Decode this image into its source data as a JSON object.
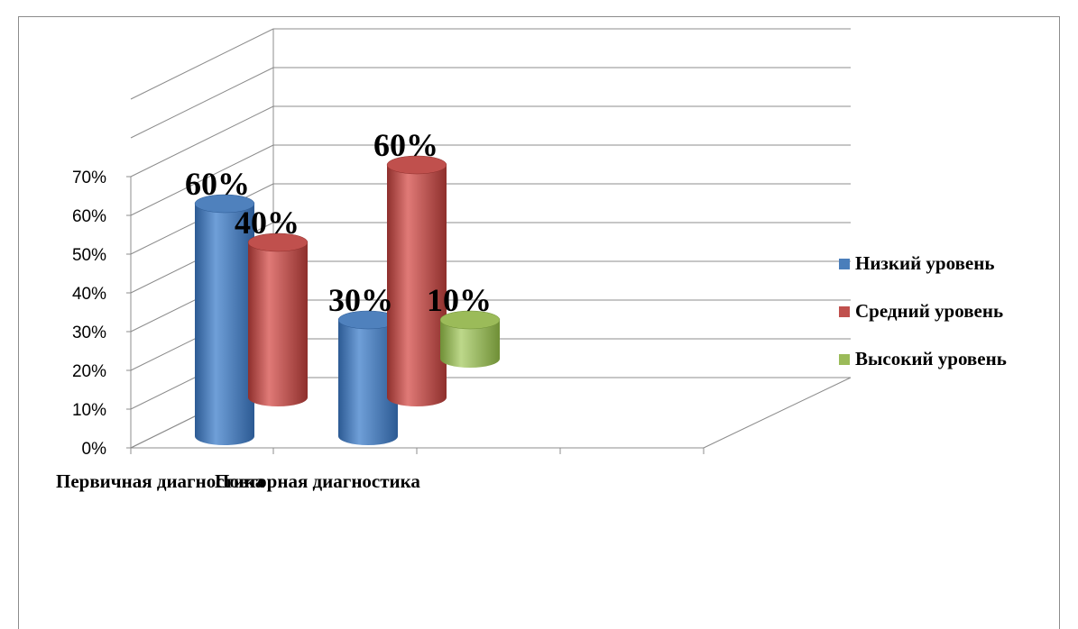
{
  "chart_data": {
    "type": "bar",
    "variant": "3d-cylinder",
    "categories": [
      "Первичная диагностика",
      "Повторная диагностика"
    ],
    "series": [
      {
        "name": "Низкий уровень",
        "color": "#4a7ebb",
        "values": [
          60,
          30
        ],
        "labels": [
          "60%",
          "30%"
        ]
      },
      {
        "name": "Средний уровень",
        "color": "#c0504d",
        "values": [
          40,
          60
        ],
        "labels": [
          "40%",
          "60%"
        ]
      },
      {
        "name": "Высокий уровень",
        "color": "#9bbb59",
        "values": [
          null,
          10
        ],
        "labels": [
          null,
          "10%"
        ]
      }
    ],
    "yticks": [
      "0%",
      "10%",
      "20%",
      "30%",
      "40%",
      "50%",
      "60%",
      "70%"
    ],
    "ylim": [
      0,
      70
    ],
    "grid": true,
    "legend_position": "right"
  }
}
